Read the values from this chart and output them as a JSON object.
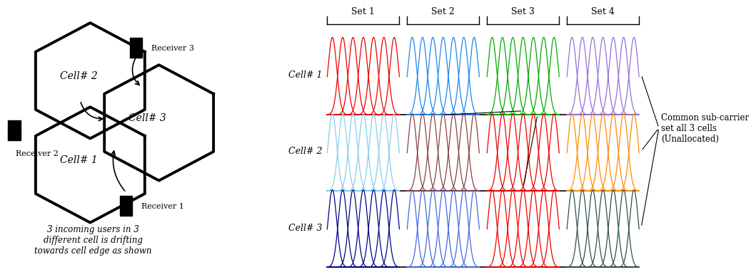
{
  "caption": "3 incoming users in 3\ndifferent cell is drifting\ntowards cell edge as shown",
  "cell_labels": [
    "Cell# 1",
    "Cell# 2",
    "Cell# 3"
  ],
  "set_labels": [
    "Set 1",
    "Set 2",
    "Set 3",
    "Set 4"
  ],
  "row_colors": [
    [
      "#EE0000",
      "#1C86EE",
      "#00AA00",
      "#9370DB"
    ],
    [
      "#87CEEB",
      "#8B4040",
      "#EE0000",
      "#FF8C00"
    ],
    [
      "#00008B",
      "#4169E1",
      "#EE0000",
      "#2F4F4F"
    ]
  ],
  "annotation": "Common sub-carrier\nset all 3 cells\n(Unallocated)",
  "bg": "#FFFFFF"
}
